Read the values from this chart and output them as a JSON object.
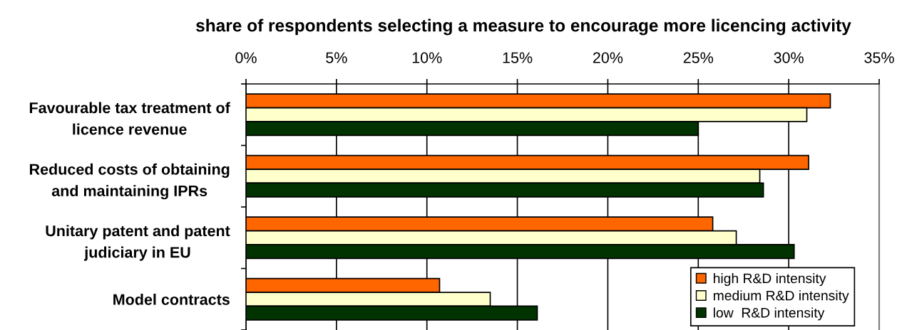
{
  "chart_data": {
    "type": "bar",
    "orientation": "horizontal",
    "xlabel": "share of respondents selecting a measure to encourage more licencing activity",
    "categories": [
      "Favourable tax treatment of\nlicence revenue",
      "Reduced costs of obtaining\nand maintaining IPRs",
      "Unitary patent and patent\njudiciary in EU",
      "Model contracts"
    ],
    "series": [
      {
        "name": "high R&D intensity",
        "color": "#ff6600",
        "values": [
          32.3,
          31.1,
          25.8,
          10.7
        ]
      },
      {
        "name": "medium R&D intensity",
        "color": "#ffffcc",
        "values": [
          31.0,
          28.4,
          27.1,
          13.5
        ]
      },
      {
        "name": "low  R&D intensity",
        "color": "#003300",
        "values": [
          25.0,
          28.6,
          30.3,
          16.1
        ]
      }
    ],
    "xlim": [
      0,
      35
    ],
    "xticks": [
      {
        "value": 0,
        "label": "0%"
      },
      {
        "value": 5,
        "label": "5%"
      },
      {
        "value": 10,
        "label": "10%"
      },
      {
        "value": 15,
        "label": "15%"
      },
      {
        "value": 20,
        "label": "20%"
      },
      {
        "value": 25,
        "label": "25%"
      },
      {
        "value": 30,
        "label": "30%"
      },
      {
        "value": 35,
        "label": "35%"
      }
    ],
    "grid": "x",
    "legend": "bottom right"
  }
}
